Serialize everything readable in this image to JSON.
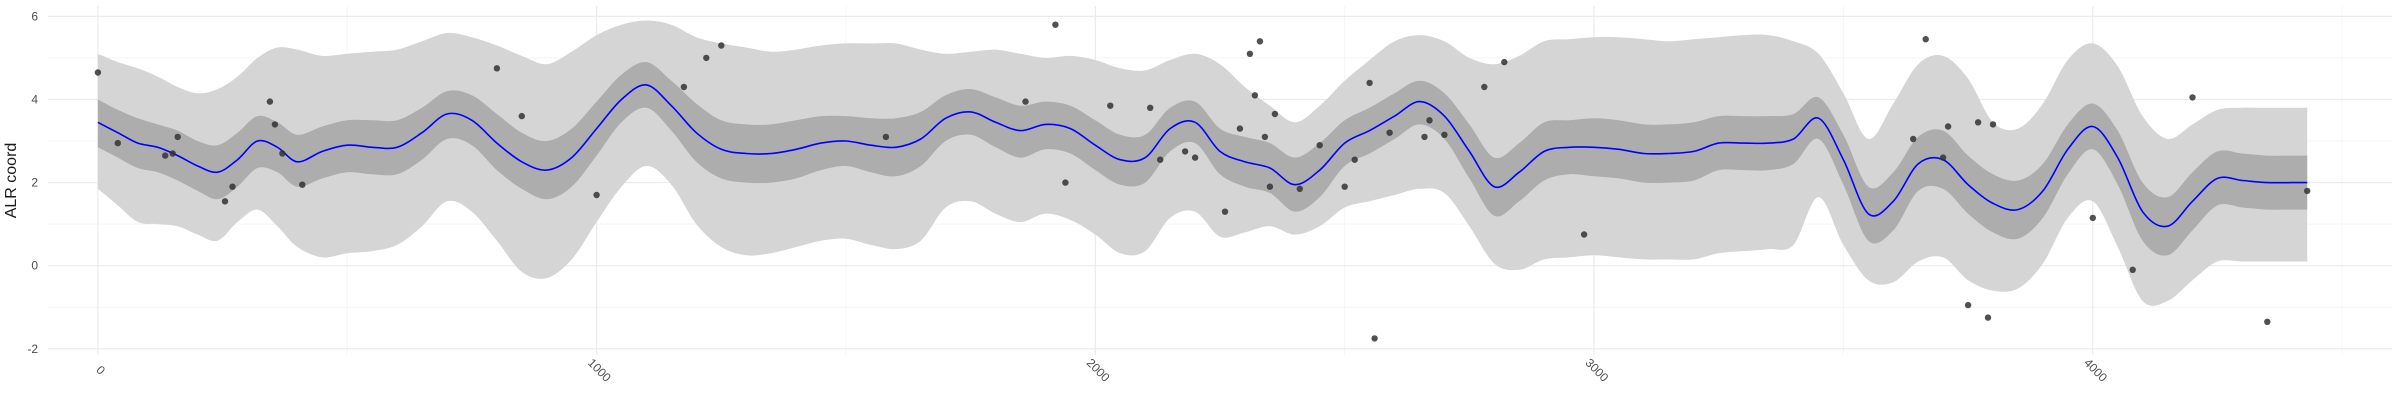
{
  "chart_data": {
    "type": "line",
    "title": "",
    "xlabel": "",
    "ylabel": "ALR coord",
    "xlim": [
      -100,
      4600
    ],
    "ylim": [
      -2.15,
      6.25
    ],
    "x_ticks": [
      0,
      1000,
      2000,
      3000,
      4000
    ],
    "x_tick_labels": [
      "0",
      "1000",
      "2000",
      "3000",
      "4000"
    ],
    "y_ticks": [
      -2,
      0,
      2,
      4,
      6
    ],
    "y_tick_labels": [
      "-2",
      "0",
      "2",
      "4",
      "6"
    ],
    "grid": true,
    "legend": "none",
    "colors": {
      "mean_line": "#0000ff",
      "inner_band": "#adadad",
      "outer_band": "#d5d5d5",
      "points": "#333333",
      "grid_major": "#ebebeb",
      "grid_minor": "#f5f5f5"
    },
    "series": [
      {
        "role": "mean",
        "type": "line",
        "x": [
          0,
          40,
          80,
          120,
          160,
          200,
          240,
          280,
          320,
          360,
          400,
          450,
          500,
          550,
          600,
          650,
          700,
          750,
          800,
          850,
          900,
          950,
          1000,
          1050,
          1100,
          1150,
          1200,
          1250,
          1300,
          1350,
          1400,
          1450,
          1500,
          1550,
          1600,
          1650,
          1700,
          1750,
          1800,
          1850,
          1900,
          1950,
          2000,
          2050,
          2100,
          2150,
          2200,
          2250,
          2300,
          2350,
          2400,
          2450,
          2500,
          2550,
          2600,
          2650,
          2700,
          2750,
          2800,
          2850,
          2900,
          2950,
          3000,
          3050,
          3100,
          3150,
          3200,
          3250,
          3300,
          3350,
          3400,
          3450,
          3500,
          3550,
          3600,
          3650,
          3700,
          3750,
          3800,
          3850,
          3900,
          3950,
          4000,
          4050,
          4100,
          4150,
          4200,
          4250,
          4300,
          4350,
          4400,
          4430
        ],
        "y": [
          3.45,
          3.2,
          2.95,
          2.85,
          2.65,
          2.4,
          2.25,
          2.55,
          3.0,
          2.85,
          2.5,
          2.75,
          2.9,
          2.85,
          2.85,
          3.2,
          3.65,
          3.5,
          2.95,
          2.5,
          2.3,
          2.6,
          3.3,
          4.0,
          4.35,
          3.85,
          3.2,
          2.8,
          2.7,
          2.7,
          2.8,
          2.95,
          3.0,
          2.9,
          2.85,
          3.05,
          3.55,
          3.7,
          3.45,
          3.25,
          3.4,
          3.3,
          2.9,
          2.55,
          2.6,
          3.3,
          3.45,
          2.75,
          2.5,
          2.35,
          1.95,
          2.3,
          2.95,
          3.25,
          3.6,
          3.95,
          3.6,
          2.75,
          1.9,
          2.25,
          2.75,
          2.85,
          2.85,
          2.8,
          2.7,
          2.7,
          2.75,
          2.95,
          2.95,
          2.95,
          3.05,
          3.55,
          2.55,
          1.25,
          1.55,
          2.45,
          2.55,
          1.95,
          1.5,
          1.35,
          1.8,
          2.8,
          3.35,
          2.6,
          1.3,
          0.95,
          1.55,
          2.1,
          2.05,
          2.0,
          2.0,
          2.0
        ]
      },
      {
        "role": "inner_interval",
        "type": "area",
        "x": [
          0,
          40,
          80,
          120,
          160,
          200,
          240,
          280,
          320,
          360,
          400,
          450,
          500,
          550,
          600,
          650,
          700,
          750,
          800,
          850,
          900,
          950,
          1000,
          1050,
          1100,
          1150,
          1200,
          1250,
          1300,
          1350,
          1400,
          1450,
          1500,
          1550,
          1600,
          1650,
          1700,
          1750,
          1800,
          1850,
          1900,
          1950,
          2000,
          2050,
          2100,
          2150,
          2200,
          2250,
          2300,
          2350,
          2400,
          2450,
          2500,
          2550,
          2600,
          2650,
          2700,
          2750,
          2800,
          2850,
          2900,
          2950,
          3000,
          3050,
          3100,
          3150,
          3200,
          3250,
          3300,
          3350,
          3400,
          3450,
          3500,
          3550,
          3600,
          3650,
          3700,
          3750,
          3800,
          3850,
          3900,
          3950,
          4000,
          4050,
          4100,
          4150,
          4200,
          4250,
          4300,
          4350,
          4400,
          4430
        ],
        "upper": [
          4.0,
          3.75,
          3.55,
          3.4,
          3.25,
          3.0,
          2.9,
          3.2,
          3.6,
          3.45,
          3.15,
          3.35,
          3.5,
          3.5,
          3.5,
          3.8,
          4.2,
          4.1,
          3.65,
          3.2,
          3.0,
          3.3,
          3.95,
          4.6,
          4.9,
          4.45,
          3.9,
          3.5,
          3.4,
          3.4,
          3.5,
          3.6,
          3.6,
          3.55,
          3.55,
          3.7,
          4.1,
          4.25,
          4.05,
          3.85,
          3.95,
          3.85,
          3.5,
          3.15,
          3.15,
          3.8,
          3.95,
          3.3,
          3.1,
          2.95,
          2.6,
          2.95,
          3.5,
          3.8,
          4.15,
          4.45,
          4.15,
          3.4,
          2.6,
          2.95,
          3.45,
          3.5,
          3.55,
          3.5,
          3.4,
          3.4,
          3.45,
          3.6,
          3.6,
          3.6,
          3.65,
          4.05,
          3.15,
          1.9,
          2.25,
          3.1,
          3.25,
          2.65,
          2.2,
          2.05,
          2.45,
          3.4,
          3.9,
          3.25,
          2.0,
          1.65,
          2.25,
          2.75,
          2.7,
          2.65,
          2.65,
          2.65
        ],
        "lower": [
          2.85,
          2.6,
          2.35,
          2.25,
          2.05,
          1.8,
          1.6,
          1.9,
          2.35,
          2.25,
          1.9,
          2.1,
          2.25,
          2.2,
          2.2,
          2.55,
          3.05,
          2.9,
          2.3,
          1.85,
          1.6,
          1.9,
          2.65,
          3.45,
          3.8,
          3.25,
          2.5,
          2.1,
          2.0,
          2.0,
          2.1,
          2.3,
          2.4,
          2.25,
          2.15,
          2.4,
          3.0,
          3.15,
          2.85,
          2.6,
          2.8,
          2.7,
          2.3,
          1.95,
          2.0,
          2.75,
          2.95,
          2.2,
          1.9,
          1.75,
          1.3,
          1.65,
          2.4,
          2.7,
          3.05,
          3.4,
          3.05,
          2.1,
          1.2,
          1.55,
          2.05,
          2.2,
          2.15,
          2.1,
          2.0,
          2.0,
          2.05,
          2.3,
          2.3,
          2.3,
          2.45,
          3.05,
          1.95,
          0.6,
          0.85,
          1.8,
          1.85,
          1.25,
          0.8,
          0.65,
          1.15,
          2.2,
          2.8,
          1.95,
          0.6,
          0.25,
          0.85,
          1.45,
          1.4,
          1.35,
          1.35,
          1.35
        ]
      },
      {
        "role": "outer_interval",
        "type": "area",
        "x": [
          0,
          40,
          80,
          120,
          160,
          200,
          240,
          280,
          320,
          360,
          400,
          450,
          500,
          550,
          600,
          650,
          700,
          750,
          800,
          850,
          900,
          950,
          1000,
          1050,
          1100,
          1150,
          1200,
          1250,
          1300,
          1350,
          1400,
          1450,
          1500,
          1550,
          1600,
          1650,
          1700,
          1750,
          1800,
          1850,
          1900,
          1950,
          2000,
          2050,
          2100,
          2150,
          2200,
          2250,
          2300,
          2350,
          2400,
          2450,
          2500,
          2550,
          2600,
          2650,
          2700,
          2750,
          2800,
          2850,
          2900,
          2950,
          3000,
          3050,
          3100,
          3150,
          3200,
          3250,
          3300,
          3350,
          3400,
          3450,
          3500,
          3550,
          3600,
          3650,
          3700,
          3750,
          3800,
          3850,
          3900,
          3950,
          4000,
          4050,
          4100,
          4150,
          4200,
          4250,
          4300,
          4350,
          4400,
          4430
        ],
        "upper": [
          5.1,
          4.9,
          4.75,
          4.55,
          4.3,
          4.15,
          4.25,
          4.55,
          5.0,
          5.25,
          5.2,
          5.05,
          5.1,
          5.15,
          5.2,
          5.4,
          5.6,
          5.5,
          5.3,
          5.05,
          4.85,
          5.15,
          5.55,
          5.8,
          5.9,
          5.8,
          5.5,
          5.35,
          5.25,
          5.15,
          5.2,
          5.3,
          5.35,
          5.35,
          5.35,
          5.2,
          5.1,
          5.15,
          5.2,
          5.1,
          5.0,
          5.05,
          4.95,
          4.75,
          4.7,
          4.95,
          5.1,
          4.85,
          4.3,
          3.85,
          3.45,
          3.85,
          4.45,
          4.95,
          5.4,
          5.55,
          5.4,
          5.0,
          4.85,
          5.05,
          5.4,
          5.45,
          5.5,
          5.5,
          5.45,
          5.4,
          5.45,
          5.5,
          5.55,
          5.55,
          5.4,
          5.1,
          4.15,
          3.05,
          3.9,
          4.85,
          5.05,
          4.5,
          3.45,
          3.3,
          3.9,
          4.95,
          5.35,
          4.8,
          3.6,
          3.05,
          3.4,
          3.75,
          3.8,
          3.8,
          3.8,
          3.8
        ],
        "lower": [
          1.85,
          1.45,
          1.05,
          1.0,
          0.95,
          0.75,
          0.6,
          1.05,
          1.35,
          0.95,
          0.45,
          0.2,
          0.3,
          0.35,
          0.5,
          0.95,
          1.55,
          1.3,
          0.6,
          -0.15,
          -0.3,
          0.15,
          1.05,
          1.9,
          2.4,
          1.95,
          1.0,
          0.45,
          0.25,
          0.3,
          0.45,
          0.6,
          0.65,
          0.5,
          0.4,
          0.6,
          1.4,
          1.55,
          1.25,
          1.05,
          1.25,
          1.1,
          0.75,
          0.3,
          0.35,
          1.15,
          1.3,
          0.7,
          0.8,
          0.95,
          0.75,
          0.95,
          1.4,
          1.55,
          1.7,
          1.85,
          1.75,
          0.95,
          0.05,
          -0.1,
          0.15,
          0.2,
          0.25,
          0.2,
          0.15,
          0.15,
          0.15,
          0.3,
          0.35,
          0.4,
          0.5,
          1.65,
          0.5,
          -0.35,
          -0.4,
          0.1,
          0.2,
          -0.35,
          -0.6,
          -0.55,
          0.05,
          1.15,
          1.55,
          0.45,
          -0.85,
          -0.85,
          -0.35,
          0.1,
          0.1,
          0.1,
          0.1,
          0.1
        ]
      },
      {
        "role": "observations",
        "type": "scatter",
        "x": [
          0,
          40,
          135,
          160,
          150,
          255,
          270,
          345,
          355,
          370,
          410,
          1000,
          800,
          850,
          1175,
          1220,
          1250,
          1580,
          1860,
          1920,
          1940,
          2030,
          2110,
          2130,
          2180,
          2200,
          2260,
          2290,
          2310,
          2320,
          2330,
          2340,
          2350,
          2360,
          2410,
          2450,
          2500,
          2520,
          2550,
          2560,
          2590,
          2660,
          2670,
          2700,
          2780,
          2820,
          2980,
          3640,
          3665,
          3700,
          3710,
          3750,
          3770,
          3790,
          3800,
          4000,
          4080,
          4200,
          4350,
          4430
        ],
        "y": [
          4.65,
          2.95,
          2.65,
          3.1,
          2.7,
          1.55,
          1.9,
          3.95,
          3.4,
          2.7,
          1.95,
          1.7,
          4.75,
          3.6,
          4.3,
          5.0,
          5.3,
          3.1,
          3.95,
          5.8,
          2.0,
          3.85,
          3.8,
          2.55,
          2.75,
          2.6,
          1.3,
          3.3,
          5.1,
          4.1,
          5.4,
          3.1,
          1.9,
          3.65,
          1.85,
          2.9,
          1.9,
          2.55,
          4.4,
          -1.75,
          3.2,
          3.1,
          3.5,
          3.15,
          4.3,
          4.9,
          0.75,
          3.05,
          5.45,
          2.6,
          3.35,
          -0.95,
          3.45,
          -1.25,
          3.4,
          1.15,
          -0.1,
          4.05,
          -1.35,
          1.8
        ]
      }
    ]
  }
}
